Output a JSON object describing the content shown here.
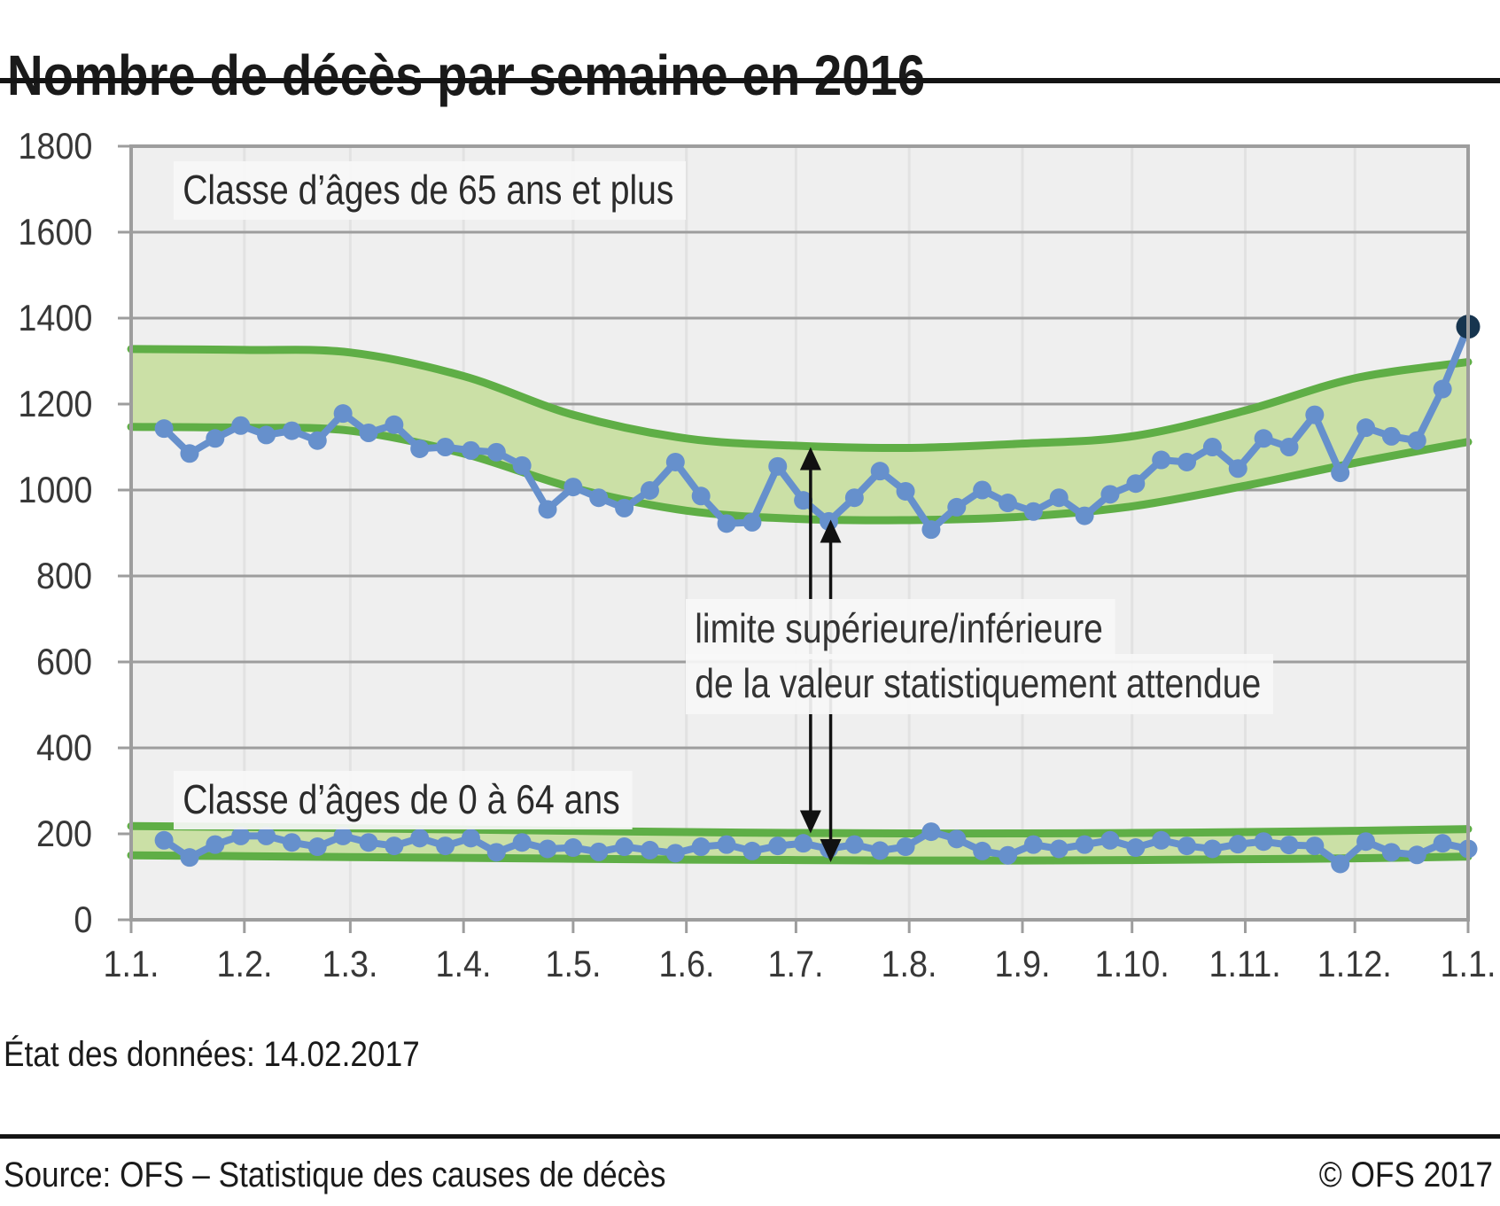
{
  "title": "Nombre de décès par semaine en 2016",
  "status_line": "État des données: 14.02.2017",
  "footer": {
    "source": "Source: OFS – Statistique des causes de décès",
    "copyright": "© OFS 2017"
  },
  "chart_data": {
    "type": "line",
    "title": "Nombre de décès par semaine en 2016",
    "xlabel": "",
    "ylabel": "",
    "ylim": [
      0,
      1800
    ],
    "ytick_step": 200,
    "y_tick_labels": [
      "1800",
      "1600",
      "1400",
      "1200",
      "1000",
      "800",
      "600",
      "400",
      "200",
      "0"
    ],
    "x_total_days": 366,
    "x_ticks": [
      {
        "label": "1.1.",
        "day": 0
      },
      {
        "label": "1.2.",
        "day": 31
      },
      {
        "label": "1.3.",
        "day": 60
      },
      {
        "label": "1.4.",
        "day": 91
      },
      {
        "label": "1.5.",
        "day": 121
      },
      {
        "label": "1.6.",
        "day": 152
      },
      {
        "label": "1.7.",
        "day": 182
      },
      {
        "label": "1.8.",
        "day": 213
      },
      {
        "label": "1.9.",
        "day": 244
      },
      {
        "label": "1.10.",
        "day": 274
      },
      {
        "label": "1.11.",
        "day": 305
      },
      {
        "label": "1.12.",
        "day": 335
      },
      {
        "label": "1.1.",
        "day": 366
      }
    ],
    "week_days": [
      9,
      16,
      23,
      30,
      37,
      44,
      51,
      58,
      65,
      72,
      79,
      86,
      93,
      100,
      107,
      114,
      121,
      128,
      135,
      142,
      149,
      156,
      163,
      170,
      177,
      184,
      191,
      198,
      205,
      212,
      219,
      226,
      233,
      240,
      247,
      254,
      261,
      268,
      275,
      282,
      289,
      296,
      303,
      310,
      317,
      324,
      331,
      338,
      345,
      352,
      359,
      366
    ],
    "series": [
      {
        "name": "Classe d’âges de 65 ans et plus",
        "values": [
          1143,
          1085,
          1120,
          1150,
          1128,
          1138,
          1115,
          1178,
          1133,
          1152,
          1096,
          1100,
          1092,
          1088,
          1057,
          955,
          1007,
          982,
          958,
          999,
          1065,
          986,
          922,
          925,
          1055,
          976,
          927,
          982,
          1044,
          997,
          908,
          960,
          1000,
          970,
          950,
          982,
          940,
          990,
          1015,
          1070,
          1065,
          1100,
          1050,
          1120,
          1100,
          1175,
          1040,
          1145,
          1125,
          1115,
          1235,
          1380
        ],
        "highlight_last_point": true
      },
      {
        "name": "Classe d’âges de 0 à 64 ans",
        "values": [
          185,
          145,
          175,
          195,
          195,
          180,
          170,
          195,
          180,
          172,
          190,
          172,
          190,
          157,
          180,
          165,
          168,
          158,
          170,
          162,
          155,
          170,
          175,
          160,
          172,
          178,
          165,
          175,
          161,
          170,
          205,
          188,
          160,
          150,
          175,
          165,
          175,
          185,
          168,
          185,
          172,
          165,
          176,
          182,
          174,
          172,
          130,
          182,
          157,
          151,
          178,
          165
        ],
        "highlight_last_point": false
      }
    ],
    "bands": [
      {
        "name": "expected-range-65plus",
        "anchor_days": [
          0,
          31,
          60,
          91,
          121,
          152,
          182,
          213,
          244,
          274,
          305,
          335,
          366
        ],
        "upper": [
          1328,
          1326,
          1320,
          1265,
          1175,
          1120,
          1103,
          1098,
          1108,
          1125,
          1185,
          1260,
          1298
        ],
        "lower": [
          1147,
          1145,
          1138,
          1085,
          1005,
          952,
          933,
          930,
          938,
          962,
          1010,
          1063,
          1112
        ]
      },
      {
        "name": "expected-range-0to64",
        "anchor_days": [
          0,
          31,
          60,
          91,
          121,
          152,
          182,
          213,
          244,
          274,
          305,
          335,
          366
        ],
        "upper": [
          218,
          216,
          213,
          210,
          207,
          204,
          202,
          201,
          201,
          202,
          204,
          207,
          211
        ],
        "lower": [
          150,
          148,
          146,
          144,
          142,
          140,
          139,
          138,
          138,
          139,
          141,
          143,
          147
        ]
      }
    ],
    "annotation": {
      "lines": [
        "limite supérieure/inférieure",
        "de la valeur statistiquement attendue"
      ],
      "arrows": [
        {
          "name": "upper-limit-arrow",
          "day": 186,
          "from_value": 1100,
          "to_value": 201
        },
        {
          "name": "lower-limit-arrow",
          "day": 191.5,
          "from_value": 931,
          "to_value": 134
        }
      ]
    },
    "colors": {
      "band_fill": "#cbe0a6",
      "band_edge": "#5fae46",
      "series_line": "#6690cc",
      "point": "#6690cc",
      "last_point": "#17354f",
      "plot_background": "#efefef",
      "grid_major": "#9d9d9d",
      "grid_minor": "#e2e2e2",
      "arrow": "#111111"
    },
    "grid": true,
    "legend_position": "none"
  }
}
